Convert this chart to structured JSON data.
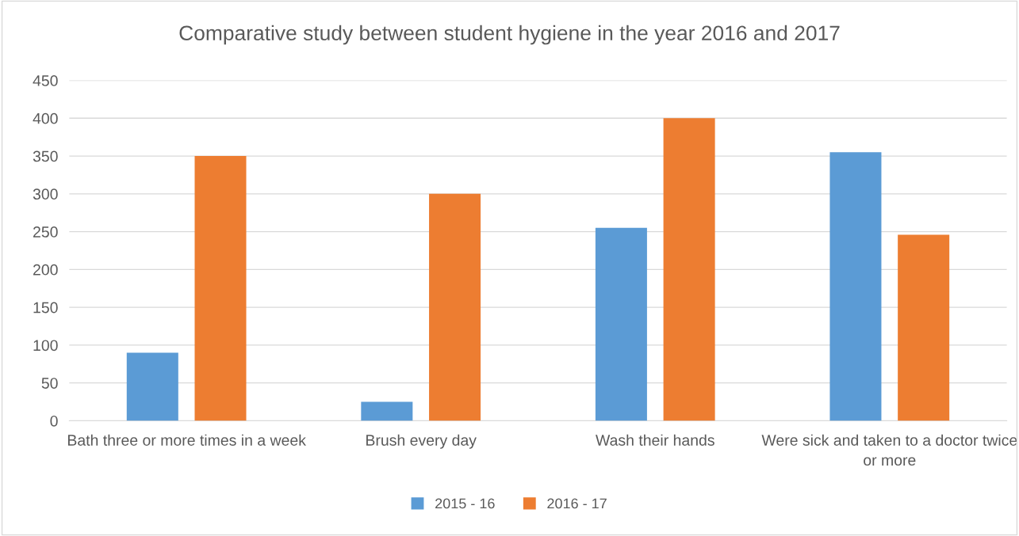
{
  "chart_data": {
    "type": "bar",
    "title": "Comparative study between student hygiene in the year 2016 and 2017",
    "categories": [
      "Bath three or more times in a week",
      "Brush every day",
      "Wash their hands",
      "Were sick and taken to a doctor twice or more"
    ],
    "series": [
      {
        "name": "2015 - 16",
        "color": "#5b9bd5",
        "values": [
          90,
          25,
          255,
          355
        ]
      },
      {
        "name": "2016 - 17",
        "color": "#ed7d31",
        "values": [
          350,
          300,
          400,
          246
        ]
      }
    ],
    "ylim": [
      0,
      450
    ],
    "yticks": [
      0,
      50,
      100,
      150,
      200,
      250,
      300,
      350,
      400,
      450
    ],
    "grid": "y",
    "legend": "bottom"
  }
}
